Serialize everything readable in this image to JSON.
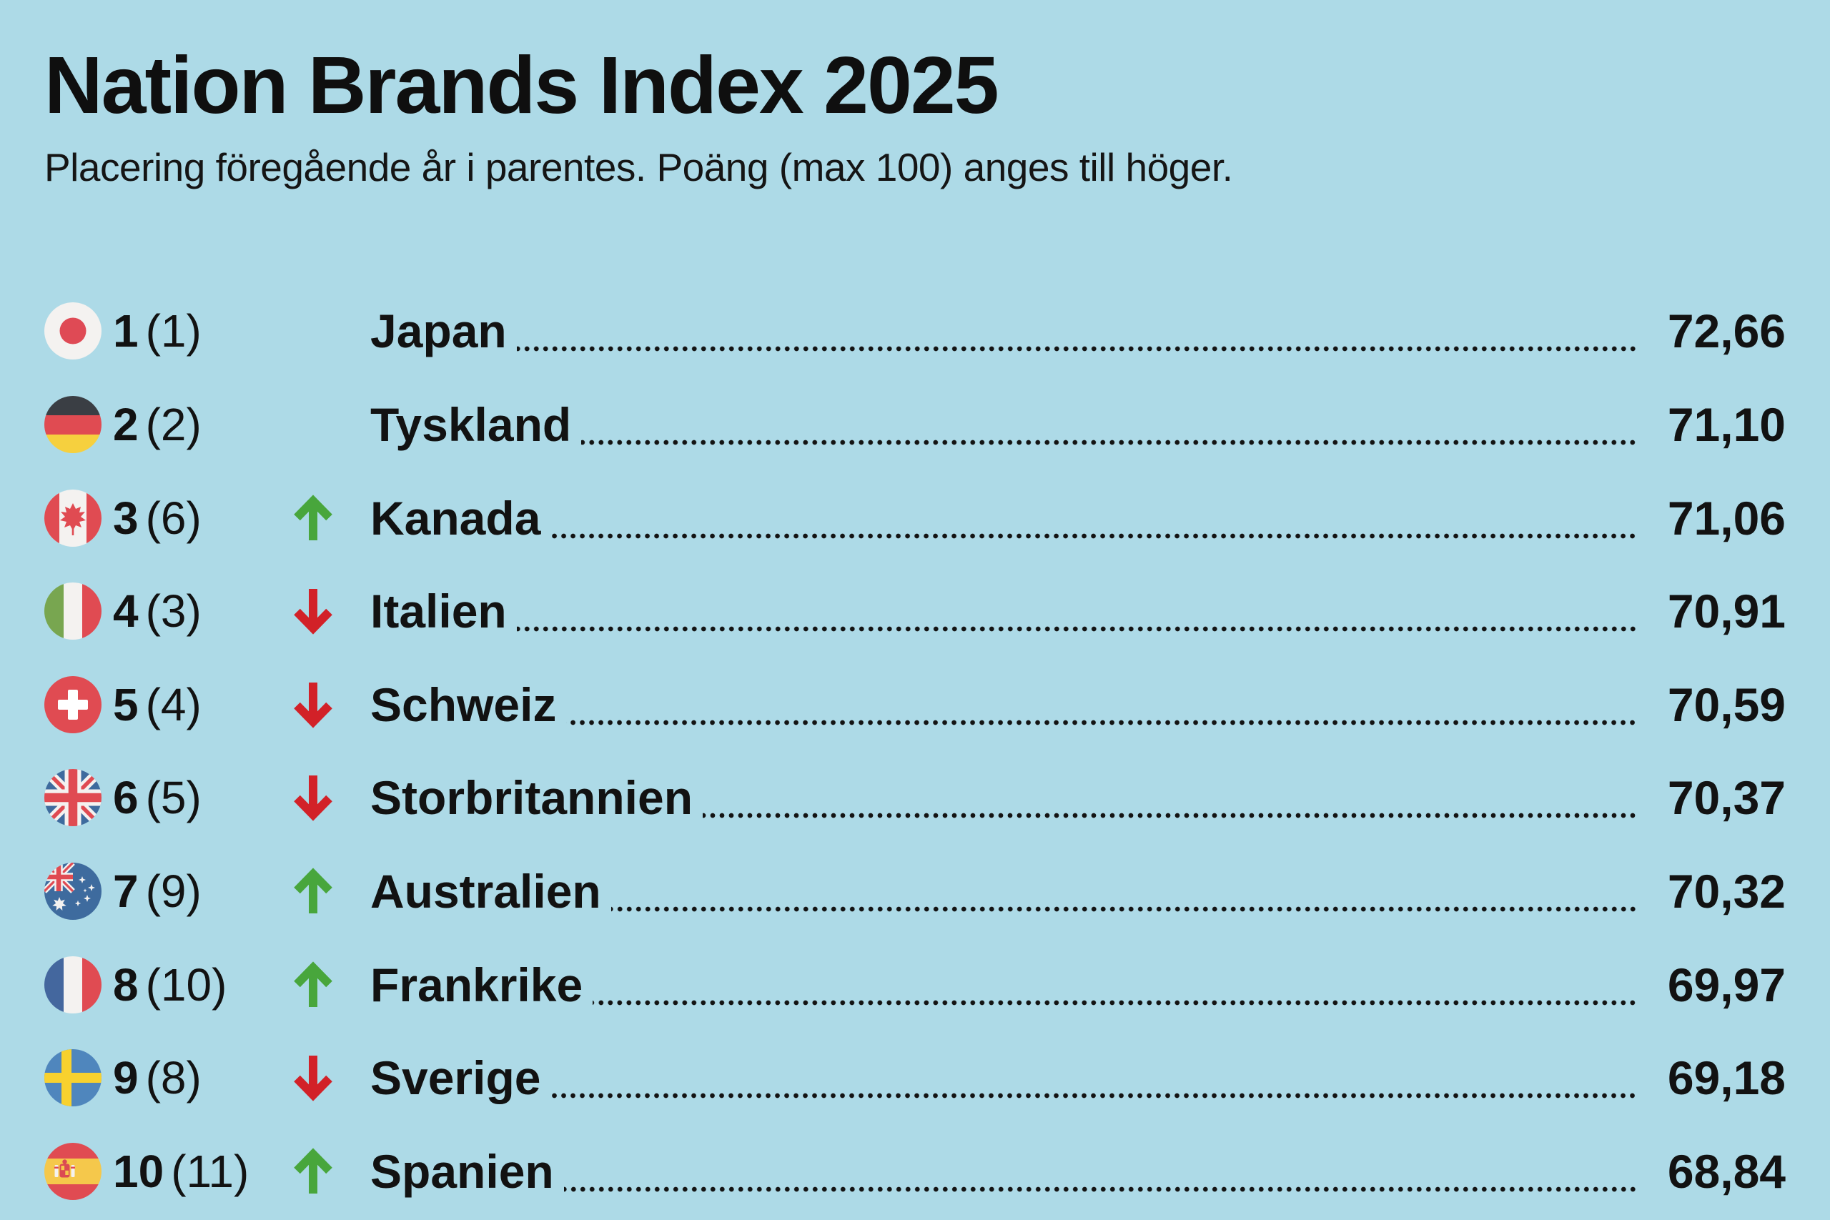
{
  "title": "Nation Brands Index 2025",
  "subtitle": "Placering föregående år i parentes. Poäng (max 100) anges till höger.",
  "colors": {
    "background": "#ADDAE7",
    "text": "#121212",
    "trend_up": "#48A63C",
    "trend_down": "#D22128"
  },
  "icons": {
    "up_arrow": "↑",
    "down_arrow": "↓"
  },
  "rows": [
    {
      "rank": "1",
      "previous": "(1)",
      "trend": "none",
      "country": "Japan",
      "flag": "japan",
      "score": "72,66"
    },
    {
      "rank": "2",
      "previous": "(2)",
      "trend": "none",
      "country": "Tyskland",
      "flag": "germany",
      "score": "71,10"
    },
    {
      "rank": "3",
      "previous": "(6)",
      "trend": "up",
      "country": "Kanada",
      "flag": "canada",
      "score": "71,06"
    },
    {
      "rank": "4",
      "previous": "(3)",
      "trend": "down",
      "country": "Italien",
      "flag": "italy",
      "score": "70,91"
    },
    {
      "rank": "5",
      "previous": "(4)",
      "trend": "down",
      "country": "Schweiz",
      "flag": "switzerland",
      "score": "70,59"
    },
    {
      "rank": "6",
      "previous": "(5)",
      "trend": "down",
      "country": "Storbritannien",
      "flag": "uk",
      "score": "70,37"
    },
    {
      "rank": "7",
      "previous": "(9)",
      "trend": "up",
      "country": "Australien",
      "flag": "australia",
      "score": "70,32"
    },
    {
      "rank": "8",
      "previous": "(10)",
      "trend": "up",
      "country": "Frankrike",
      "flag": "france",
      "score": "69,97"
    },
    {
      "rank": "9",
      "previous": "(8)",
      "trend": "down",
      "country": "Sverige",
      "flag": "sweden",
      "score": "69,18"
    },
    {
      "rank": "10",
      "previous": "(11)",
      "trend": "up",
      "country": "Spanien",
      "flag": "spain",
      "score": "68,84"
    }
  ]
}
